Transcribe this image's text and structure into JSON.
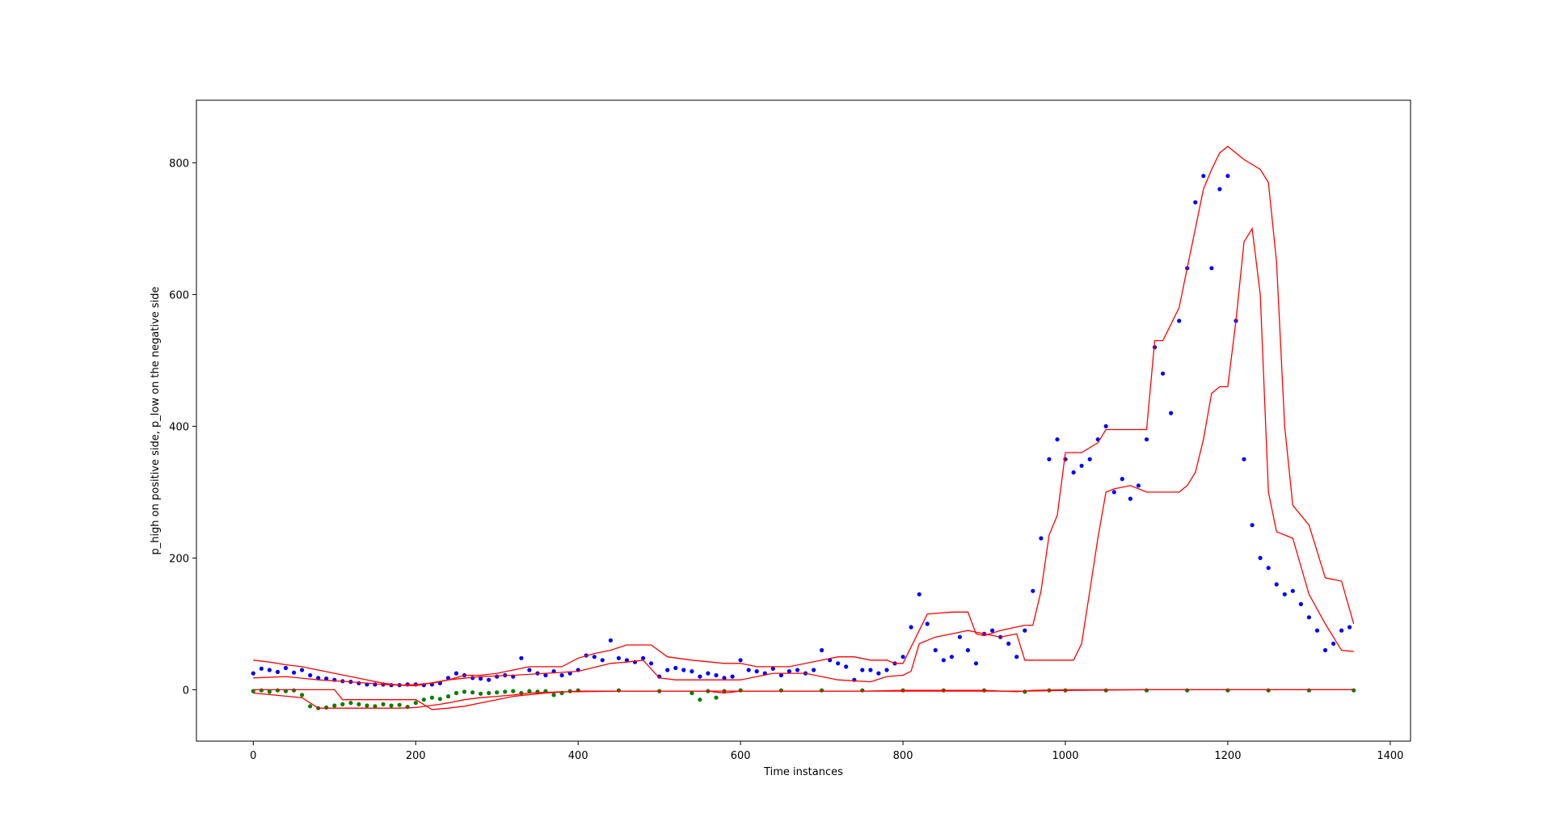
{
  "chart_data": {
    "type": "scatter",
    "title": "",
    "xlabel": "Time instances",
    "ylabel": "p_high on positive side, p_low on the negative side",
    "xlim": [
      -70,
      1425
    ],
    "ylim": [
      -78,
      895
    ],
    "xticks": [
      0,
      200,
      400,
      600,
      800,
      1000,
      1200,
      1400
    ],
    "yticks": [
      0,
      200,
      400,
      600,
      800
    ],
    "grid": false,
    "legend": "none",
    "colors": {
      "high_points": "#0000ff",
      "low_points": "#008000",
      "bands": "#ff0000",
      "frame": "#000000"
    },
    "series": [
      {
        "kind": "scatter",
        "color": "#0000ff",
        "x": [
          0,
          10,
          20,
          30,
          40,
          50,
          60,
          70,
          80,
          90,
          100,
          110,
          120,
          130,
          140,
          150,
          160,
          170,
          180,
          190,
          200,
          210,
          220,
          230,
          240,
          250,
          260,
          270,
          280,
          290,
          300,
          310,
          320,
          330,
          340,
          350,
          360,
          370,
          380,
          390,
          400,
          410,
          420,
          430,
          440,
          450,
          460,
          470,
          480,
          490,
          500,
          510,
          520,
          530,
          540,
          550,
          560,
          570,
          580,
          590,
          600,
          610,
          620,
          630,
          640,
          650,
          660,
          670,
          680,
          690,
          700,
          710,
          720,
          730,
          740,
          750,
          760,
          770,
          780,
          790,
          800,
          810,
          820,
          830,
          840,
          850,
          860,
          870,
          880,
          890,
          900,
          910,
          920,
          930,
          940,
          950,
          960,
          970,
          980,
          990,
          1000,
          1010,
          1020,
          1030,
          1040,
          1050,
          1060,
          1070,
          1080,
          1090,
          1100,
          1110,
          1120,
          1130,
          1140,
          1150,
          1160,
          1170,
          1180,
          1190,
          1200,
          1210,
          1220,
          1230,
          1240,
          1250,
          1260,
          1270,
          1280,
          1290,
          1300,
          1310,
          1320,
          1330,
          1340,
          1350
        ],
        "y": [
          25,
          32,
          30,
          27,
          33,
          26,
          30,
          22,
          18,
          17,
          15,
          13,
          12,
          10,
          8,
          8,
          8,
          7,
          7,
          8,
          8,
          7,
          8,
          10,
          18,
          25,
          22,
          18,
          17,
          15,
          20,
          22,
          20,
          48,
          30,
          25,
          22,
          28,
          22,
          25,
          30,
          52,
          50,
          45,
          75,
          48,
          45,
          42,
          48,
          40,
          20,
          30,
          33,
          30,
          28,
          20,
          25,
          22,
          18,
          20,
          45,
          30,
          28,
          25,
          32,
          22,
          28,
          30,
          25,
          30,
          60,
          45,
          40,
          35,
          15,
          30,
          30,
          25,
          30,
          40,
          50,
          95,
          145,
          100,
          60,
          45,
          50,
          80,
          60,
          40,
          85,
          90,
          80,
          70,
          50,
          90,
          150,
          230,
          350,
          380,
          350,
          330,
          340,
          350,
          380,
          400,
          300,
          320,
          290,
          310,
          380,
          520,
          480,
          420,
          560,
          640,
          740,
          780,
          640,
          760,
          780,
          560,
          350,
          250,
          200,
          185,
          160,
          145,
          150,
          130,
          110,
          90,
          60,
          70,
          90,
          95
        ]
      },
      {
        "kind": "scatter",
        "color": "#008000",
        "x": [
          0,
          10,
          20,
          30,
          40,
          50,
          60,
          70,
          80,
          90,
          100,
          110,
          120,
          130,
          140,
          150,
          160,
          170,
          180,
          190,
          200,
          210,
          220,
          230,
          240,
          250,
          260,
          270,
          280,
          290,
          300,
          310,
          320,
          330,
          340,
          350,
          360,
          370,
          380,
          390,
          400,
          450,
          500,
          540,
          550,
          560,
          570,
          580,
          600,
          650,
          700,
          750,
          800,
          850,
          900,
          950,
          980,
          1000,
          1050,
          1100,
          1150,
          1200,
          1250,
          1300,
          1355
        ],
        "y": [
          -2,
          -1,
          -3,
          -1,
          -2,
          -1,
          -8,
          -25,
          -28,
          -27,
          -24,
          -22,
          -20,
          -22,
          -24,
          -25,
          -22,
          -24,
          -23,
          -26,
          -20,
          -15,
          -12,
          -14,
          -10,
          -5,
          -3,
          -4,
          -6,
          -5,
          -4,
          -3,
          -2,
          -5,
          -2,
          -3,
          -2,
          -8,
          -5,
          -2,
          -1,
          -1,
          -2,
          -5,
          -15,
          -2,
          -12,
          -2,
          -1,
          -1,
          -1,
          -1,
          -1,
          -1,
          -1,
          -3,
          -1,
          -1,
          -1,
          -1,
          -1,
          -1,
          -1,
          -1,
          -1
        ]
      },
      {
        "kind": "line",
        "color": "#ff0000",
        "x": [
          0,
          20,
          40,
          60,
          80,
          100,
          120,
          140,
          160,
          180,
          200,
          220,
          240,
          260,
          280,
          300,
          320,
          340,
          380,
          400,
          420,
          440,
          460,
          490,
          510,
          540,
          580,
          600,
          620,
          640,
          660,
          700,
          720,
          740,
          760,
          780,
          790,
          800,
          820,
          830,
          860,
          880,
          890,
          900,
          920,
          950,
          960,
          970,
          980,
          990,
          1000,
          1020,
          1040,
          1050,
          1060,
          1080,
          1100,
          1110,
          1120,
          1140,
          1150,
          1160,
          1170,
          1180,
          1190,
          1200,
          1220,
          1240,
          1250,
          1260,
          1270,
          1280,
          1300,
          1320,
          1340,
          1355
        ],
        "y": [
          45,
          42,
          38,
          35,
          30,
          25,
          20,
          15,
          10,
          7,
          8,
          10,
          15,
          22,
          22,
          25,
          30,
          35,
          35,
          48,
          55,
          60,
          68,
          68,
          50,
          45,
          40,
          40,
          35,
          35,
          35,
          45,
          50,
          50,
          45,
          45,
          40,
          40,
          90,
          115,
          118,
          118,
          85,
          82,
          90,
          98,
          98,
          150,
          235,
          265,
          360,
          360,
          375,
          395,
          395,
          395,
          395,
          530,
          530,
          580,
          640,
          700,
          760,
          790,
          815,
          825,
          805,
          790,
          770,
          650,
          400,
          280,
          250,
          170,
          165,
          100
        ]
      },
      {
        "kind": "line",
        "color": "#ff0000",
        "x": [
          0,
          40,
          80,
          120,
          160,
          200,
          240,
          280,
          320,
          360,
          400,
          440,
          460,
          480,
          500,
          520,
          560,
          600,
          640,
          680,
          720,
          760,
          780,
          800,
          810,
          820,
          840,
          860,
          880,
          900,
          920,
          940,
          950,
          980,
          990,
          1000,
          1010,
          1020,
          1030,
          1040,
          1050,
          1060,
          1080,
          1100,
          1120,
          1140,
          1150,
          1160,
          1170,
          1180,
          1190,
          1200,
          1210,
          1220,
          1230,
          1240,
          1250,
          1260,
          1280,
          1300,
          1320,
          1340,
          1355
        ],
        "y": [
          18,
          20,
          15,
          12,
          8,
          6,
          15,
          20,
          22,
          25,
          28,
          40,
          42,
          45,
          18,
          15,
          15,
          15,
          25,
          25,
          15,
          12,
          20,
          22,
          28,
          70,
          80,
          85,
          90,
          85,
          80,
          85,
          45,
          45,
          45,
          45,
          45,
          70,
          150,
          230,
          300,
          305,
          310,
          300,
          300,
          300,
          310,
          330,
          380,
          450,
          460,
          460,
          560,
          680,
          700,
          600,
          300,
          240,
          230,
          145,
          100,
          60,
          58
        ]
      },
      {
        "kind": "line",
        "color": "#ff0000",
        "x": [
          0,
          100,
          110,
          200,
          220,
          240,
          260,
          280,
          300,
          320,
          360,
          400,
          500,
          560,
          580,
          600,
          800,
          900,
          950,
          1000,
          1100,
          1200,
          1355
        ],
        "y": [
          0,
          0,
          -15,
          -15,
          -30,
          -28,
          -25,
          -20,
          -15,
          -10,
          -5,
          -2,
          -2,
          -2,
          -5,
          -2,
          -2,
          -2,
          -2,
          -1,
          0,
          0,
          0
        ]
      },
      {
        "kind": "line",
        "color": "#ff0000",
        "x": [
          0,
          60,
          80,
          100,
          120,
          140,
          160,
          180,
          200,
          230,
          240,
          260,
          280,
          300,
          320,
          340,
          360,
          380,
          400,
          460,
          520,
          560,
          580,
          600,
          650,
          700,
          750,
          800,
          850,
          900,
          940,
          960,
          1000,
          1100,
          1355
        ],
        "y": [
          -5,
          -12,
          -28,
          -28,
          -28,
          -28,
          -28,
          -28,
          -27,
          -22,
          -20,
          -15,
          -12,
          -10,
          -8,
          -5,
          -4,
          -3,
          -3,
          -2,
          -2,
          -2,
          -2,
          -2,
          -2,
          -2,
          -2,
          -1,
          -1,
          -1,
          -3,
          -1,
          0,
          0,
          0
        ]
      }
    ]
  }
}
